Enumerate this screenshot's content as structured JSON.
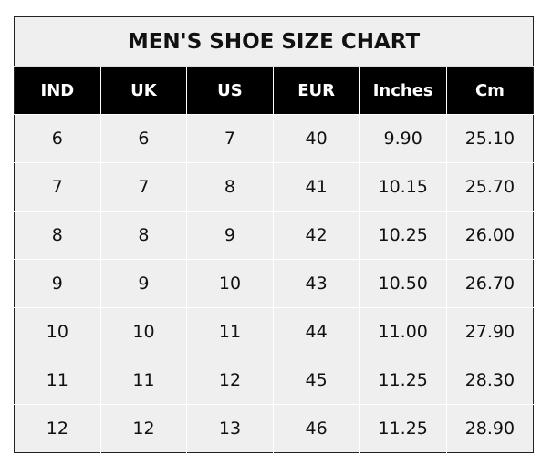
{
  "title": "MEN'S SHOE SIZE CHART",
  "headers": [
    "IND",
    "UK",
    "US",
    "EUR",
    "Inches",
    "Cm"
  ],
  "rows": [
    [
      "6",
      "6",
      "7",
      "40",
      "9.90",
      "25.10"
    ],
    [
      "7",
      "7",
      "8",
      "41",
      "10.15",
      "25.70"
    ],
    [
      "8",
      "8",
      "9",
      "42",
      "10.25",
      "26.00"
    ],
    [
      "9",
      "9",
      "10",
      "43",
      "10.50",
      "26.70"
    ],
    [
      "10",
      "10",
      "11",
      "44",
      "11.00",
      "27.90"
    ],
    [
      "11",
      "11",
      "12",
      "45",
      "11.25",
      "28.30"
    ],
    [
      "12",
      "12",
      "13",
      "46",
      "11.25",
      "28.90"
    ]
  ],
  "colors": {
    "header_bg": "#000000",
    "cell_bg": "#efefef",
    "grid": "#ffffff"
  }
}
